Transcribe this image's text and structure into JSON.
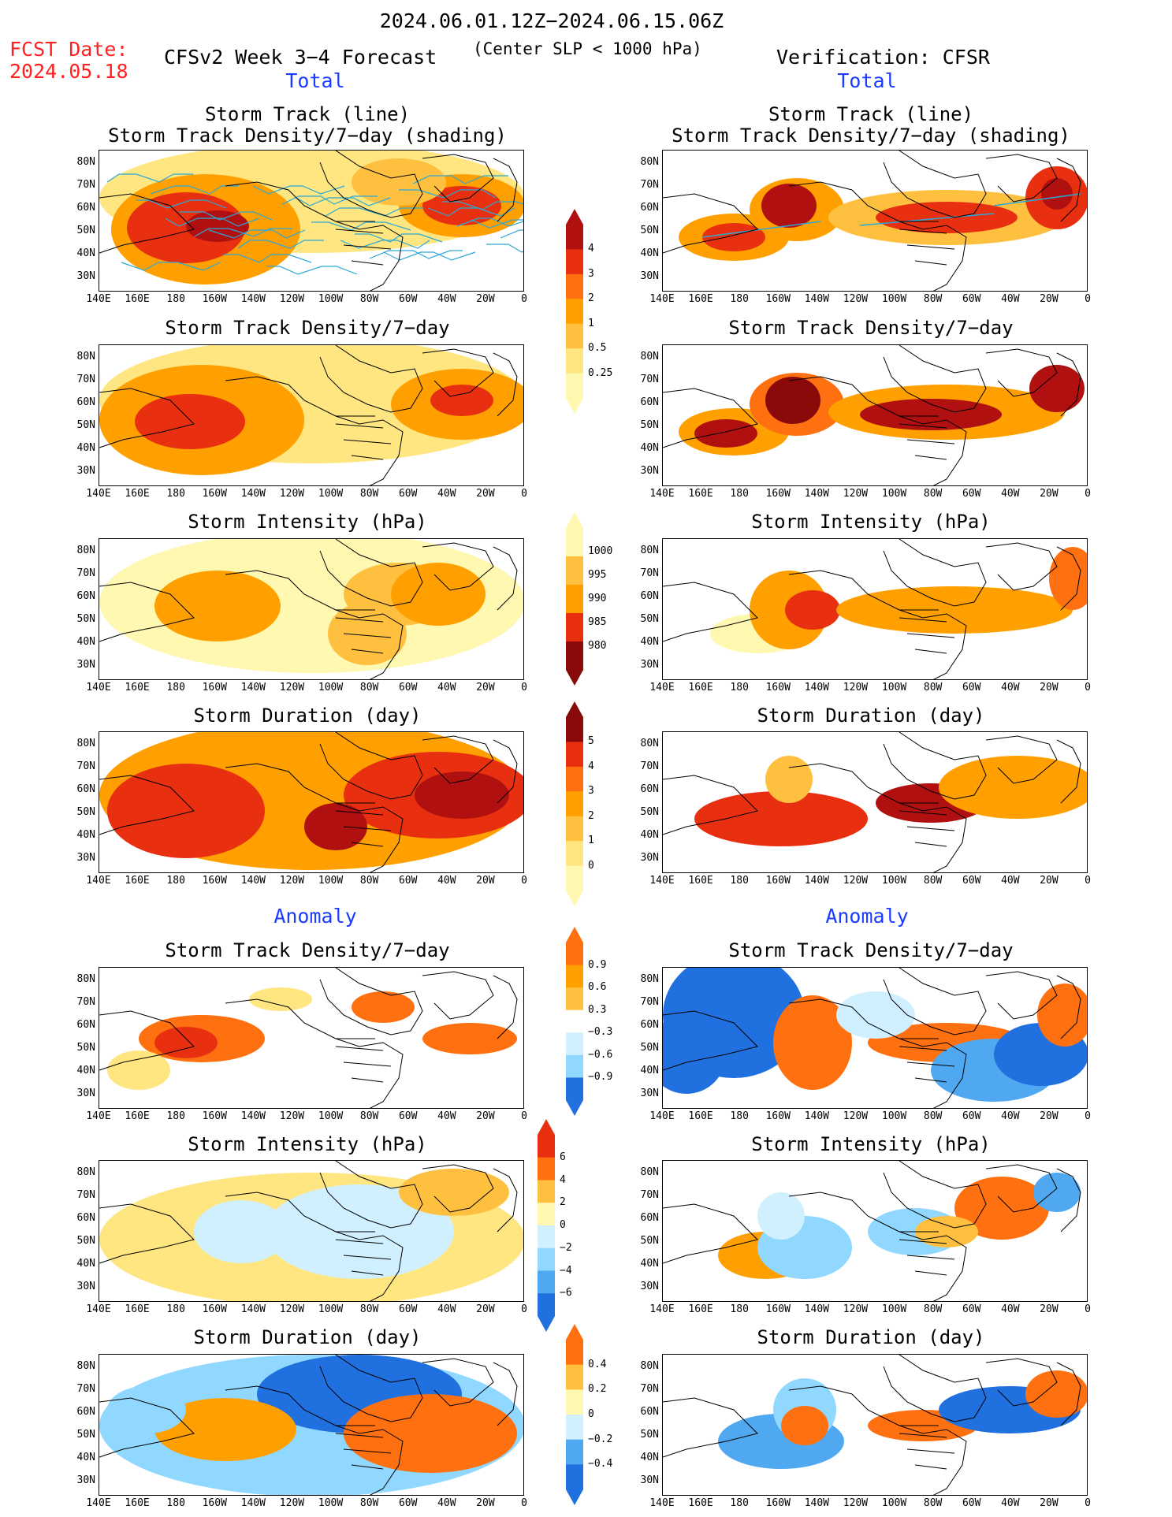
{
  "header": {
    "date_range": "2024.06.01.12Z−2024.06.15.06Z",
    "fcst_label": "FCST Date:",
    "fcst_date": "2024.05.18",
    "forecast_title": "CFSv2 Week 3−4 Forecast",
    "criterion": "(Center SLP < 1000 hPa)",
    "verification": "Verification: CFSR"
  },
  "sections": {
    "total": "Total",
    "anomaly": "Anomaly"
  },
  "panel_titles": {
    "row1_line1": "Storm Track (line)",
    "row1_line2": "Storm Track Density/7−day (shading)",
    "density": "Storm Track Density/7−day",
    "intensity": "Storm Intensity (hPa)",
    "duration": "Storm Duration (day)"
  },
  "axes": {
    "lat_labels": [
      "80N",
      "70N",
      "60N",
      "50N",
      "40N",
      "30N"
    ],
    "lon_labels": [
      "140E",
      "160E",
      "180",
      "160W",
      "140W",
      "120W",
      "100W",
      "80W",
      "60W",
      "40W",
      "20W",
      "0"
    ]
  },
  "colorbars": {
    "density_total": [
      "4",
      "3",
      "2",
      "1",
      "0.5",
      "0.25"
    ],
    "intensity_total": [
      "1000",
      "995",
      "990",
      "985",
      "980"
    ],
    "duration_total": [
      "5",
      "4",
      "3",
      "2",
      "1",
      "0"
    ],
    "density_anom": [
      "0.9",
      "0.6",
      "0.3",
      "−0.3",
      "−0.6",
      "−0.9"
    ],
    "intensity_anom": [
      "6",
      "4",
      "2",
      "0",
      "−2",
      "−4",
      "−6"
    ],
    "duration_anom": [
      "0.4",
      "0.2",
      "0",
      "−0.2",
      "−0.4"
    ]
  },
  "colors": {
    "warm": [
      "#fff8b0",
      "#ffe680",
      "#ffc040",
      "#ffa000",
      "#ff7010",
      "#e83010",
      "#b01010",
      "#8a0a0a"
    ],
    "cool": [
      "#d0f0ff",
      "#90d8ff",
      "#50a8f0",
      "#2070e0",
      "#1040c0"
    ],
    "track_line": "#2aa8d8"
  }
}
